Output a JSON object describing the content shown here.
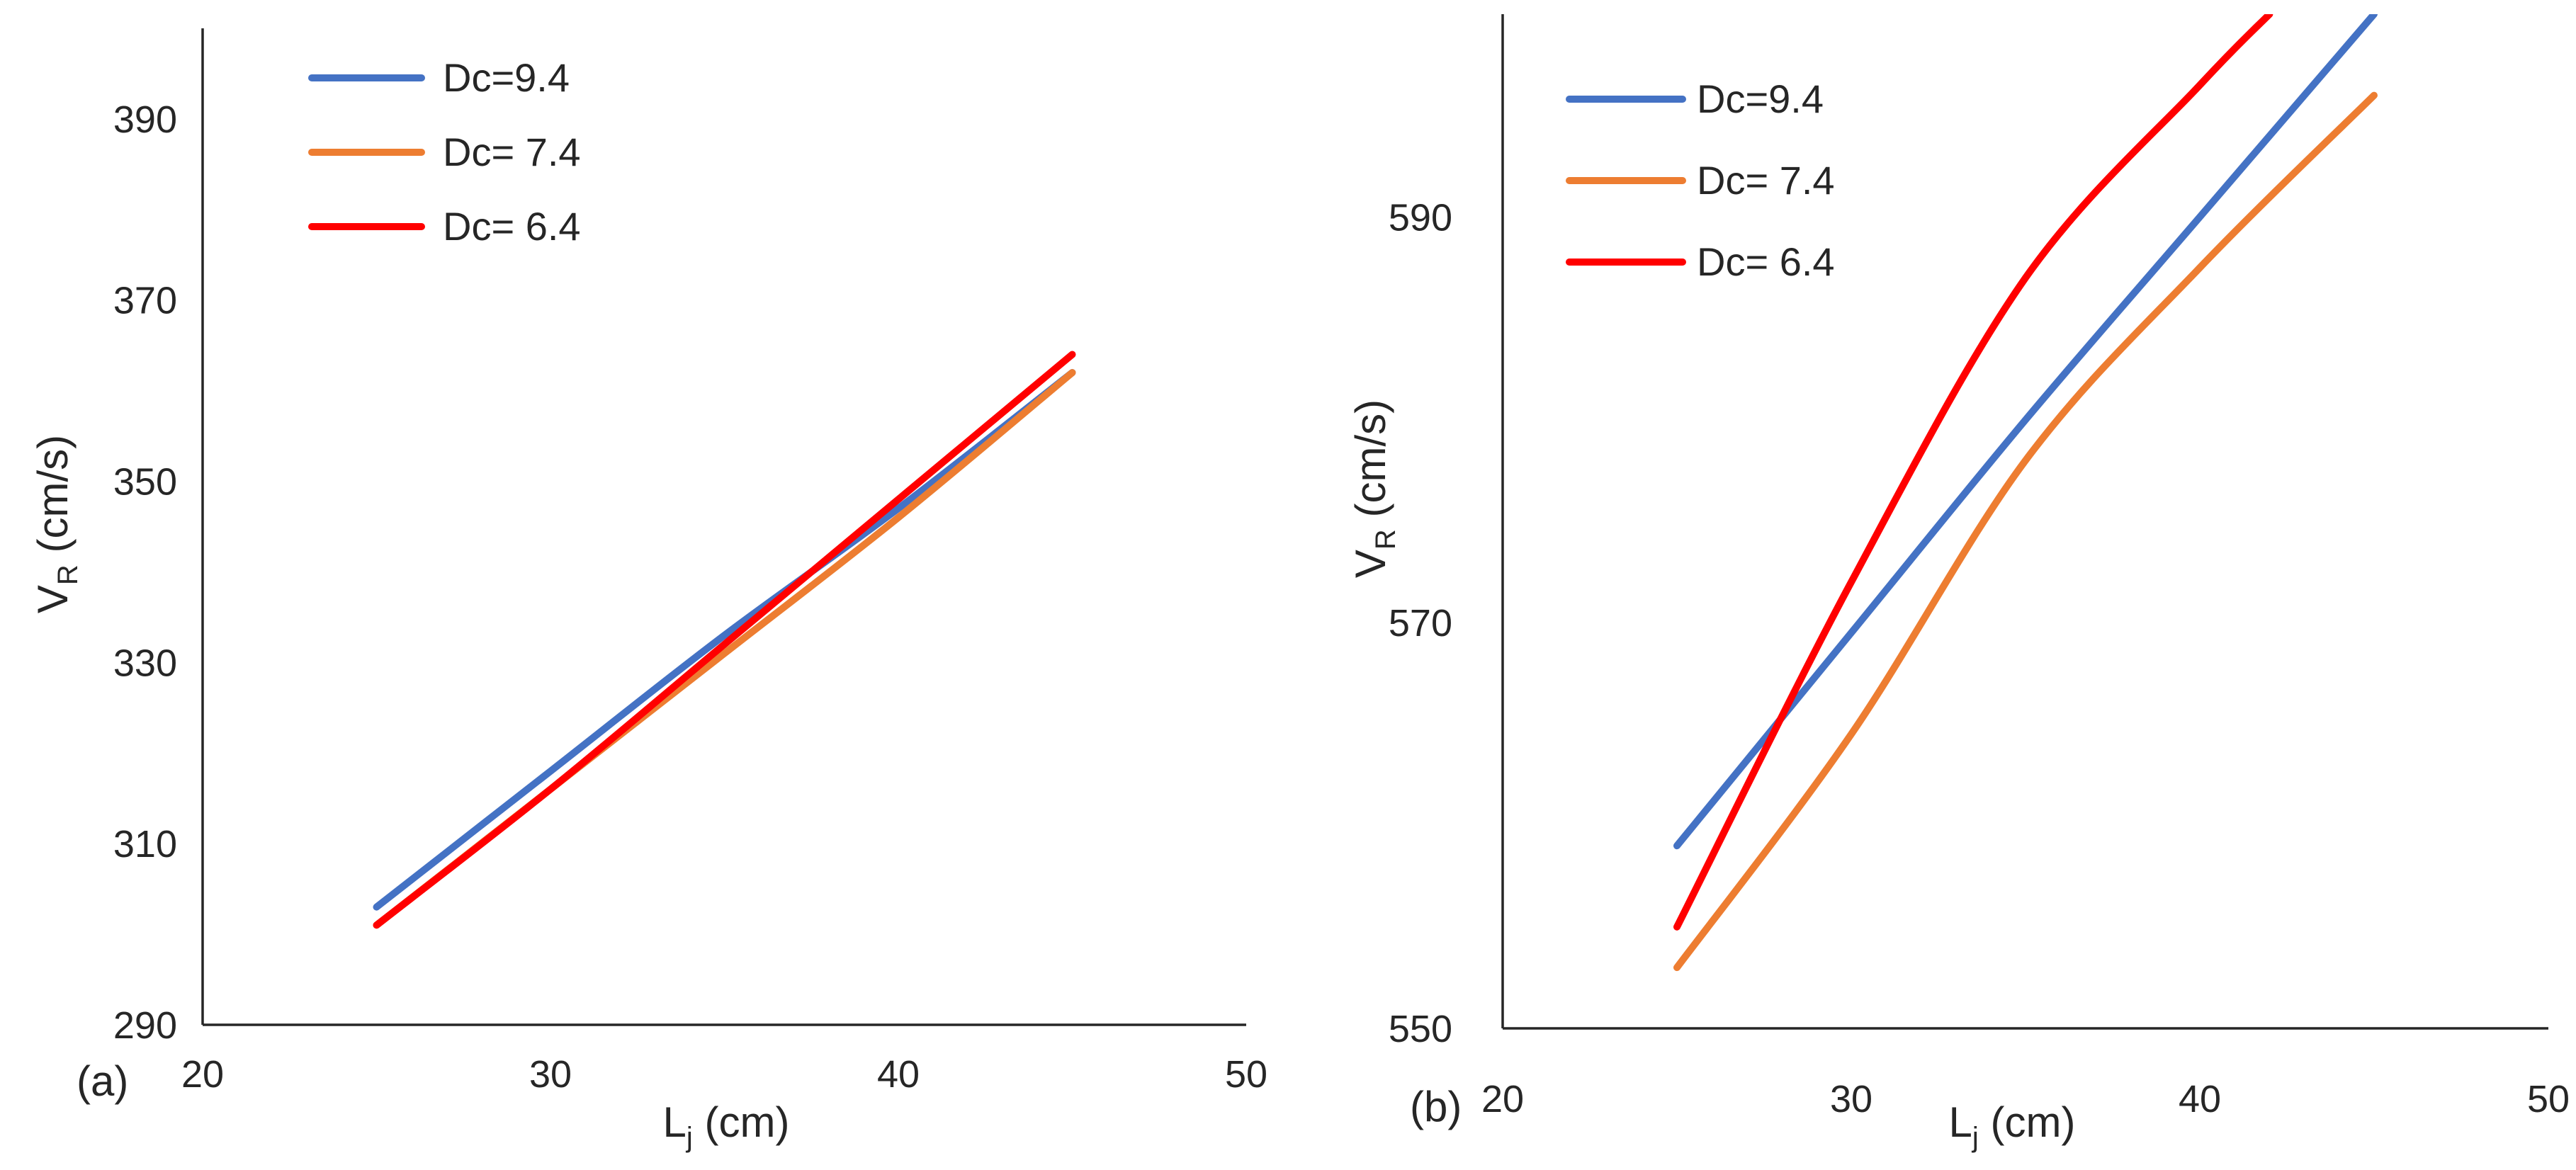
{
  "chart_data": [
    {
      "type": "line",
      "panel_label": "(a)",
      "xlabel": "L",
      "xlabel_sub": "j",
      "xlabel_unit": "(cm)",
      "ylabel": "V",
      "ylabel_sub": "R",
      "ylabel_unit": "(cm/s)",
      "xlim": [
        20,
        50
      ],
      "ylim": [
        290,
        400
      ],
      "x_ticks": [
        20,
        30,
        40,
        50
      ],
      "y_ticks": [
        290,
        310,
        330,
        350,
        370,
        390
      ],
      "legend_position": "top-left",
      "series": [
        {
          "name": "Dc=9.4",
          "color": "#4472C4",
          "x": [
            25,
            30,
            35,
            40,
            45
          ],
          "y": [
            303,
            318,
            333,
            347,
            362
          ]
        },
        {
          "name": "Dc= 7.4",
          "color": "#ED7D31",
          "x": [
            25,
            30,
            35,
            40,
            45
          ],
          "y": [
            301,
            316,
            331,
            346,
            362
          ]
        },
        {
          "name": "Dc= 6.4",
          "color": "#FF0000",
          "x": [
            25,
            30,
            35,
            40,
            45
          ],
          "y": [
            301,
            316,
            332,
            348,
            364
          ]
        }
      ]
    },
    {
      "type": "line",
      "panel_label": "(b)",
      "xlabel": "L",
      "xlabel_sub": "j",
      "xlabel_unit": "(cm)",
      "ylabel": "V",
      "ylabel_sub": "R",
      "ylabel_unit": "(cm/s)",
      "xlim": [
        20,
        50
      ],
      "ylim": [
        550,
        600
      ],
      "x_ticks": [
        20,
        30,
        40,
        50
      ],
      "y_ticks": [
        550,
        570,
        590
      ],
      "legend_position": "top-left",
      "series": [
        {
          "name": "Dc=9.4",
          "color": "#4472C4",
          "x": [
            25,
            30,
            35,
            40,
            45
          ],
          "y": [
            559,
            569.5,
            580,
            590,
            600
          ]
        },
        {
          "name": "Dc= 7.4",
          "color": "#ED7D31",
          "x": [
            25,
            30,
            35,
            40,
            45
          ],
          "y": [
            553,
            564.5,
            578,
            587.5,
            596
          ]
        },
        {
          "name": "Dc= 6.4",
          "color": "#FF0000",
          "x": [
            25,
            30,
            35,
            40,
            42
          ],
          "y": [
            555,
            572,
            587,
            596.5,
            600
          ]
        }
      ]
    }
  ]
}
